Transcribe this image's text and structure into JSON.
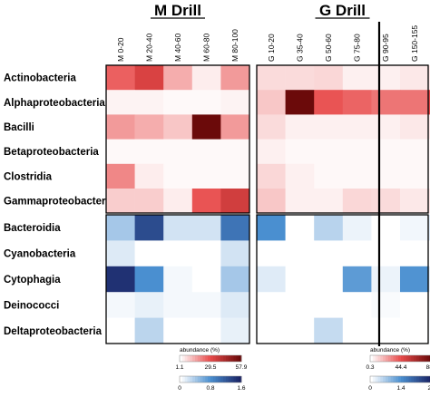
{
  "chart_data": {
    "type": "heatmap",
    "groups": [
      {
        "title": "M Drill",
        "columns": [
          "M 0-20",
          "M 20-40",
          "M 40-60",
          "M 60-80",
          "M 80-100"
        ]
      },
      {
        "title": "G Drill",
        "columns": [
          "G 10-20",
          "G 35-40",
          "G 50-60",
          "G 75-80",
          "G 90-95",
          "G 150-155",
          "G 180-188"
        ]
      }
    ],
    "red_block": {
      "rows": [
        "Actinobacteria",
        "Alphaproteobacteria",
        "Bacilli",
        "Betaproteobacteria",
        "Clostridia",
        "Gammaproteobacteria"
      ],
      "M": [
        [
          26,
          33,
          14,
          4,
          17
        ],
        [
          3,
          3,
          2,
          2,
          3
        ],
        [
          17,
          14,
          10,
          57.9,
          17
        ],
        [
          2,
          2,
          2,
          2,
          2
        ],
        [
          20,
          4,
          2,
          2,
          2
        ],
        [
          9,
          9,
          4,
          28,
          35
        ]
      ],
      "G": [
        [
          9,
          9,
          10,
          4,
          4,
          6,
          6
        ],
        [
          14,
          88.5,
          42,
          38,
          34,
          34,
          48
        ],
        [
          9,
          4,
          4,
          4,
          4,
          6,
          6
        ],
        [
          4,
          2,
          2,
          2,
          2,
          2,
          2
        ],
        [
          10,
          4,
          2,
          2,
          2,
          2,
          2
        ],
        [
          14,
          4,
          4,
          10,
          9,
          6,
          6
        ]
      ]
    },
    "blue_block": {
      "rows": [
        "Bacteroidia",
        "Cyanobacteria",
        "Cytophagia",
        "Deinococci",
        "Deltaproteobacteria"
      ],
      "M": [
        [
          0.4,
          1.3,
          0.2,
          0.2,
          1.0
        ],
        [
          0.15,
          0,
          0,
          0,
          0.2
        ],
        [
          1.5,
          0.8,
          0.05,
          0,
          0.4
        ],
        [
          0.05,
          0.1,
          0.05,
          0.05,
          0.15
        ],
        [
          0,
          0.3,
          0,
          0,
          0.1
        ]
      ],
      "G": [
        [
          1.4,
          0,
          0.55,
          0.15,
          0,
          0.1,
          0.25
        ],
        [
          0,
          0,
          0,
          0,
          0,
          0,
          0
        ],
        [
          0.25,
          0,
          0,
          1.25,
          0.15,
          1.35,
          0.25
        ],
        [
          0,
          0,
          0,
          0,
          0.05,
          0,
          0.05
        ],
        [
          0,
          0,
          0.45,
          0,
          0,
          0,
          0.05
        ]
      ]
    },
    "legends": [
      {
        "title": "abundance (%)",
        "red_ticks": [
          "1.1",
          "29.5",
          "57.9"
        ],
        "red_range": [
          1.1,
          57.9
        ],
        "blue_ticks": [
          "0",
          "0.8",
          "1.6"
        ],
        "blue_range": [
          0,
          1.6
        ]
      },
      {
        "title": "abundance (%)",
        "red_ticks": [
          "0.3",
          "44.4",
          "88.5"
        ],
        "red_range": [
          0.3,
          88.5
        ],
        "blue_ticks": [
          "0",
          "1.4",
          "2.8"
        ],
        "blue_range": [
          0,
          2.8
        ]
      }
    ],
    "colors": {
      "red_low": "#ffffff",
      "red_mid": "#e84a4a",
      "red_high": "#6b0a0a",
      "blue_low": "#ffffff",
      "blue_mid": "#4a8fd0",
      "blue_high": "#1a2466"
    }
  }
}
